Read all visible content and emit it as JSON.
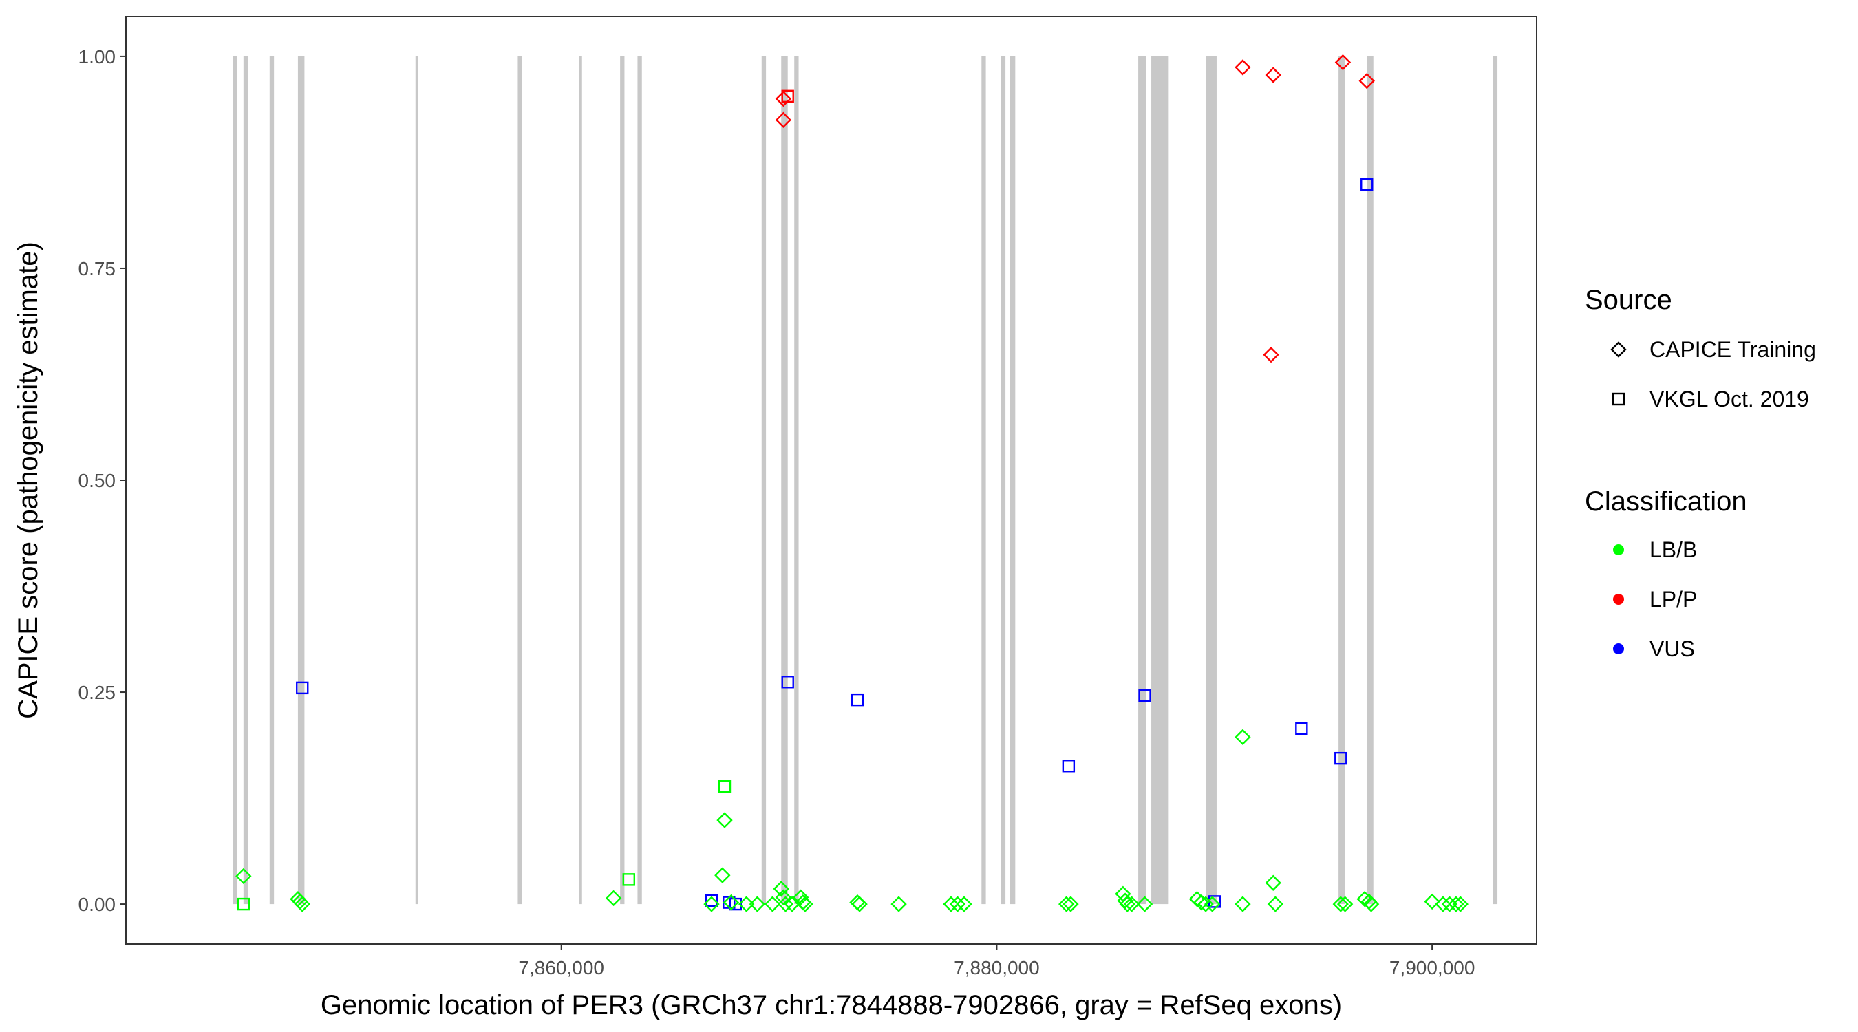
{
  "chart_data": {
    "type": "scatter",
    "xlabel": "Genomic location of PER3 (GRCh37 chr1:7844888-7902866, gray = RefSeq exons)",
    "ylabel": "CAPICE score (pathogenicity estimate)",
    "xlim": [
      7840000,
      7904800
    ],
    "ylim": [
      -0.047,
      1.047
    ],
    "x_ticks": [
      7860000,
      7880000,
      7900000
    ],
    "x_tick_labels": [
      "7,860,000",
      "7,880,000",
      "7,900,000"
    ],
    "y_ticks": [
      0.0,
      0.25,
      0.5,
      0.75,
      1.0
    ],
    "y_tick_labels": [
      "0.00",
      "0.25",
      "0.50",
      "0.75",
      "1.00"
    ],
    "grid": false,
    "legend_position": "right",
    "exon_color": "#c8c8c8",
    "exons": [
      [
        7844900,
        7845100
      ],
      [
        7845400,
        7845600
      ],
      [
        7846600,
        7846800
      ],
      [
        7847900,
        7848200
      ],
      [
        7853300,
        7853400
      ],
      [
        7858000,
        7858200
      ],
      [
        7860800,
        7860950
      ],
      [
        7862700,
        7862900
      ],
      [
        7863500,
        7863700
      ],
      [
        7869200,
        7869400
      ],
      [
        7870100,
        7870400
      ],
      [
        7870700,
        7870900
      ],
      [
        7879300,
        7879500
      ],
      [
        7880200,
        7880400
      ],
      [
        7880600,
        7880850
      ],
      [
        7886500,
        7886850
      ],
      [
        7887100,
        7887900
      ],
      [
        7889600,
        7890100
      ],
      [
        7895700,
        7896000
      ],
      [
        7897000,
        7897300
      ],
      [
        7902800,
        7903000
      ]
    ],
    "legend": {
      "source_title": "Source",
      "source_items": [
        {
          "label": "CAPICE Training",
          "shape": "diamond"
        },
        {
          "label": "VKGL Oct. 2019",
          "shape": "square"
        }
      ],
      "class_title": "Classification",
      "class_items": [
        {
          "label": "LB/B",
          "color": "#00ff00"
        },
        {
          "label": "LP/P",
          "color": "#ff0000"
        },
        {
          "label": "VUS",
          "color": "#0000ff"
        }
      ]
    },
    "colors": {
      "LB/B": "#00ff00",
      "LP/P": "#ff0000",
      "VUS": "#0000ff"
    },
    "series": [
      {
        "source": "CAPICE Training",
        "classification": "LP/P",
        "points": [
          [
            7870200,
            0.95
          ],
          [
            7870200,
            0.925
          ],
          [
            7891300,
            0.987
          ],
          [
            7892700,
            0.978
          ],
          [
            7895900,
            0.993
          ],
          [
            7897000,
            0.971
          ],
          [
            7892600,
            0.648
          ]
        ]
      },
      {
        "source": "VKGL Oct. 2019",
        "classification": "LP/P",
        "points": [
          [
            7870400,
            0.953
          ]
        ]
      },
      {
        "source": "VKGL Oct. 2019",
        "classification": "VUS",
        "points": [
          [
            7848100,
            0.255
          ],
          [
            7870400,
            0.262
          ],
          [
            7873600,
            0.241
          ],
          [
            7883300,
            0.163
          ],
          [
            7886800,
            0.246
          ],
          [
            7894000,
            0.207
          ],
          [
            7895800,
            0.172
          ],
          [
            7897000,
            0.849
          ],
          [
            7866900,
            0.004
          ],
          [
            7867700,
            0.002
          ],
          [
            7868000,
            0.0
          ],
          [
            7890000,
            0.003
          ]
        ]
      },
      {
        "source": "VKGL Oct. 2019",
        "classification": "LB/B",
        "points": [
          [
            7845400,
            0.0
          ],
          [
            7863100,
            0.029
          ],
          [
            7867500,
            0.139
          ]
        ]
      },
      {
        "source": "CAPICE Training",
        "classification": "LB/B",
        "points": [
          [
            7845400,
            0.033
          ],
          [
            7847900,
            0.006
          ],
          [
            7848000,
            0.003
          ],
          [
            7848100,
            0.0
          ],
          [
            7862400,
            0.007
          ],
          [
            7867500,
            0.099
          ],
          [
            7867400,
            0.034
          ],
          [
            7866900,
            0.0
          ],
          [
            7867800,
            0.002
          ],
          [
            7868500,
            0.0
          ],
          [
            7869000,
            0.0
          ],
          [
            7869700,
            0.0
          ],
          [
            7870100,
            0.018
          ],
          [
            7870200,
            0.008
          ],
          [
            7870300,
            0.0
          ],
          [
            7870600,
            0.0
          ],
          [
            7871000,
            0.008
          ],
          [
            7871100,
            0.002
          ],
          [
            7871200,
            0.0
          ],
          [
            7873600,
            0.002
          ],
          [
            7873700,
            0.0
          ],
          [
            7875500,
            0.0
          ],
          [
            7877900,
            0.0
          ],
          [
            7878200,
            0.0
          ],
          [
            7878500,
            0.0
          ],
          [
            7883200,
            0.0
          ],
          [
            7883400,
            0.0
          ],
          [
            7885800,
            0.012
          ],
          [
            7885900,
            0.004
          ],
          [
            7886000,
            0.0
          ],
          [
            7886200,
            0.0
          ],
          [
            7886800,
            0.0
          ],
          [
            7889200,
            0.006
          ],
          [
            7889400,
            0.002
          ],
          [
            7889600,
            0.0
          ],
          [
            7889900,
            0.0
          ],
          [
            7891300,
            0.197
          ],
          [
            7891300,
            0.0
          ],
          [
            7892700,
            0.025
          ],
          [
            7892800,
            0.0
          ],
          [
            7895800,
            0.0
          ],
          [
            7896000,
            0.0
          ],
          [
            7896900,
            0.006
          ],
          [
            7897100,
            0.003
          ],
          [
            7897200,
            0.0
          ],
          [
            7900000,
            0.003
          ],
          [
            7900500,
            0.0
          ],
          [
            7900800,
            0.0
          ],
          [
            7901100,
            0.0
          ],
          [
            7901300,
            0.0
          ]
        ]
      }
    ]
  }
}
